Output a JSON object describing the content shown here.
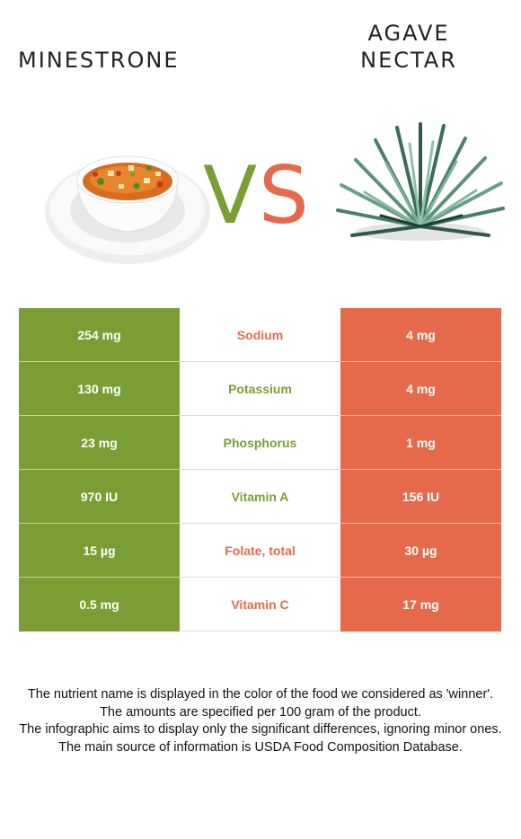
{
  "foods": {
    "left": {
      "name": "MINESTRONE",
      "color": "#7a9e33"
    },
    "right": {
      "name_line1": "AGAVE",
      "name_line2": "NECTAR",
      "color": "#e56a4b"
    }
  },
  "vs": {
    "v": "V",
    "s": "S"
  },
  "nutrients": [
    {
      "left_value": "254 mg",
      "name": "Sodium",
      "right_value": "4 mg",
      "winner": "right"
    },
    {
      "left_value": "130 mg",
      "name": "Potassium",
      "right_value": "4 mg",
      "winner": "left"
    },
    {
      "left_value": "23 mg",
      "name": "Phosphorus",
      "right_value": "1 mg",
      "winner": "left"
    },
    {
      "left_value": "970 IU",
      "name": "Vitamin A",
      "right_value": "156 IU",
      "winner": "left"
    },
    {
      "left_value": "15 µg",
      "name": "Folate, total",
      "right_value": "30 µg",
      "winner": "right"
    },
    {
      "left_value": "0.5 mg",
      "name": "Vitamin C",
      "right_value": "17 mg",
      "winner": "right"
    }
  ],
  "notes": [
    "The nutrient name is displayed in the color of the food we considered as 'winner'.",
    "The amounts are specified per 100 gram of the product.",
    "The infographic aims to display only the significant differences, ignoring minor ones.",
    "The main source of information is USDA Food Composition Database."
  ]
}
